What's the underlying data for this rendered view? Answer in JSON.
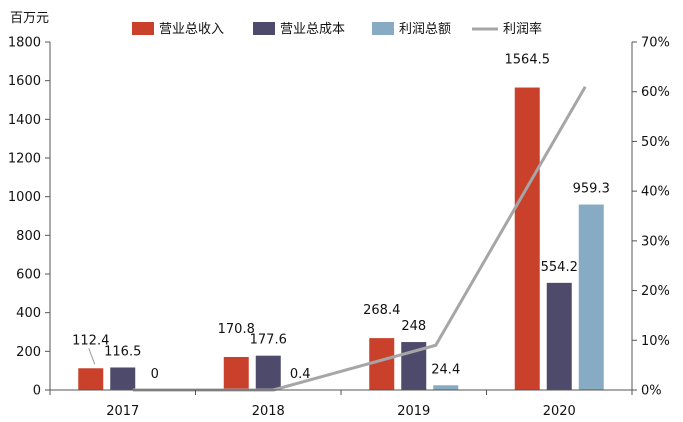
{
  "chart_data": {
    "type": "bar",
    "unit_label": "百万元",
    "categories": [
      "2017",
      "2018",
      "2019",
      "2020"
    ],
    "series": [
      {
        "name": "营业总收入",
        "kind": "bar",
        "color": "#C9412B",
        "values": [
          112.4,
          170.8,
          268.4,
          1564.5
        ],
        "labels": [
          "112.4",
          "170.8",
          "268.4",
          "1564.5"
        ]
      },
      {
        "name": "营业总成本",
        "kind": "bar",
        "color": "#4E4A6B",
        "values": [
          116.5,
          177.6,
          248,
          554.2
        ],
        "labels": [
          "116.5",
          "177.6",
          "248",
          "554.2"
        ]
      },
      {
        "name": "利润总额",
        "kind": "bar",
        "color": "#86ABC2",
        "values": [
          0,
          0.4,
          24.4,
          959.3
        ],
        "labels": [
          "0",
          "0.4",
          "24.4",
          "959.3"
        ]
      },
      {
        "name": "利润率",
        "kind": "line",
        "axis": "right",
        "color": "#A6A6A6",
        "values": [
          0,
          0,
          9,
          61
        ]
      }
    ],
    "y_left": {
      "min": 0,
      "max": 1800,
      "ticks": [
        "0",
        "200",
        "400",
        "600",
        "800",
        "1000",
        "1200",
        "1400",
        "1600",
        "1800"
      ]
    },
    "y_right": {
      "min": 0,
      "max": 70,
      "ticks": [
        "0%",
        "10%",
        "20%",
        "30%",
        "40%",
        "50%",
        "60%",
        "70%"
      ]
    },
    "legend": "top"
  }
}
